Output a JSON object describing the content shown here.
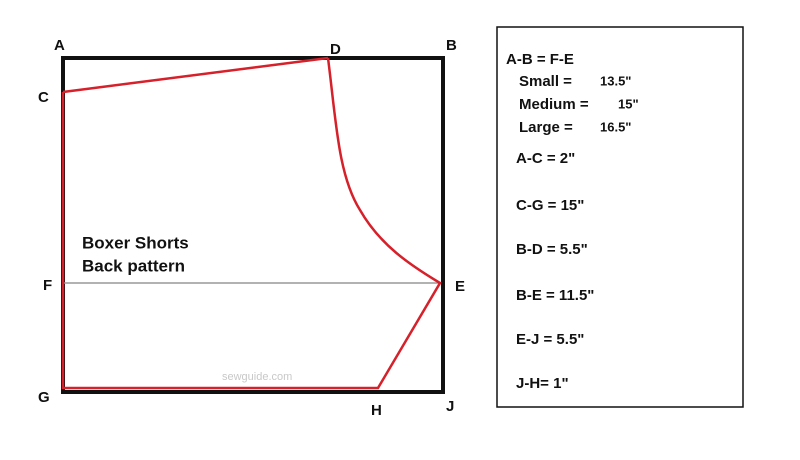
{
  "points": {
    "A": "A",
    "B": "B",
    "C": "C",
    "D": "D",
    "E": "E",
    "F": "F",
    "G": "G",
    "H": "H",
    "J": "J"
  },
  "pattern_title": [
    "Boxer Shorts",
    "Back pattern"
  ],
  "watermark": "sewguide.com",
  "legend": {
    "heading": "A-B = F-E",
    "sizes": [
      {
        "label": "Small =",
        "value": "13.5\""
      },
      {
        "label": "Medium =",
        "value": "15\""
      },
      {
        "label": "Large =",
        "value": "16.5\""
      }
    ],
    "measurements": [
      "A-C = 2\"",
      "C-G = 15\"",
      "B-D = 5.5\"",
      "B-E = 11.5\"",
      "E-J = 5.5\"",
      "J-H= 1\""
    ]
  }
}
